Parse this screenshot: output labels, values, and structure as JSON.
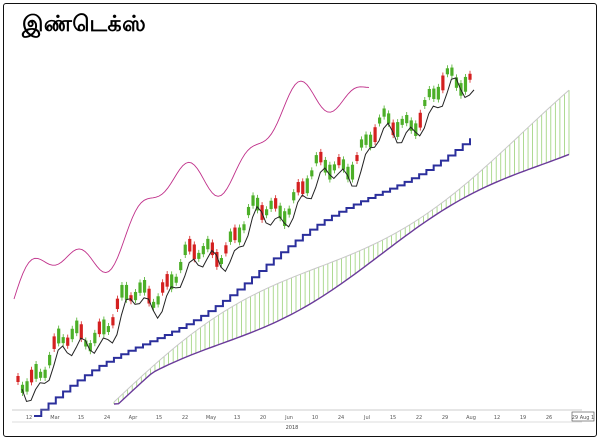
{
  "chart_data": {
    "type": "candlestick",
    "title": "இண்டெக்ஸ்",
    "colors": {
      "up": "#4caf28",
      "down": "#d42020",
      "fast_line": "#222222",
      "slow_line": "#2b2f9c",
      "lagging_line": "#c0308a",
      "cloud_top": "#c8c8c8",
      "cloud_bottom": "#6a3a9a",
      "cloud_fill": "#79c24a"
    },
    "x_tick_labels": [
      "12",
      "Mar",
      "15",
      "24",
      "Apr",
      "15",
      "22",
      "May",
      "13",
      "20",
      "Jun",
      "10",
      "24",
      "Jul",
      "15",
      "22",
      "29",
      "Aug",
      "12",
      "19",
      "26"
    ],
    "x_sub_label": "2018",
    "corner_label": "29 Aug 1",
    "candles": [
      [
        0,
        60
      ],
      [
        1,
        40
      ],
      [
        1,
        44
      ],
      [
        0,
        48
      ],
      [
        1,
        52
      ],
      [
        1,
        56
      ],
      [
        1,
        60
      ],
      [
        1,
        64
      ],
      [
        0,
        70
      ],
      [
        1,
        72
      ],
      [
        1,
        74
      ],
      [
        0,
        76
      ],
      [
        1,
        78
      ],
      [
        1,
        82
      ],
      [
        0,
        88
      ],
      [
        1,
        92
      ],
      [
        1,
        94
      ],
      [
        1,
        96
      ],
      [
        0,
        100
      ],
      [
        1,
        102
      ],
      [
        1,
        104
      ],
      [
        0,
        106
      ],
      [
        0,
        108
      ],
      [
        1,
        110
      ],
      [
        1,
        112
      ],
      [
        0,
        116
      ],
      [
        1,
        118
      ],
      [
        1,
        120
      ],
      [
        1,
        122
      ],
      [
        0,
        124
      ],
      [
        1,
        126
      ],
      [
        1,
        128
      ],
      [
        0,
        132
      ],
      [
        0,
        136
      ],
      [
        1,
        138
      ],
      [
        1,
        140
      ],
      [
        1,
        142
      ],
      [
        1,
        144
      ],
      [
        0,
        146
      ],
      [
        0,
        148
      ],
      [
        1,
        150
      ],
      [
        1,
        152
      ],
      [
        1,
        154
      ],
      [
        0,
        156
      ],
      [
        0,
        158
      ],
      [
        1,
        160
      ],
      [
        0,
        162
      ],
      [
        1,
        164
      ],
      [
        0,
        166
      ],
      [
        1,
        168
      ],
      [
        1,
        170
      ],
      [
        1,
        172
      ],
      [
        1,
        174
      ],
      [
        1,
        176
      ],
      [
        0,
        178
      ],
      [
        1,
        180
      ],
      [
        1,
        182
      ],
      [
        0,
        184
      ],
      [
        1,
        186
      ],
      [
        1,
        188
      ],
      [
        1,
        190
      ],
      [
        1,
        192
      ],
      [
        0,
        194
      ],
      [
        0,
        196
      ],
      [
        1,
        198
      ],
      [
        1,
        200
      ],
      [
        1,
        202
      ],
      [
        0,
        204
      ],
      [
        1,
        206
      ],
      [
        1,
        208
      ],
      [
        1,
        210
      ],
      [
        0,
        212
      ],
      [
        1,
        214
      ],
      [
        1,
        216
      ],
      [
        1,
        218
      ],
      [
        0,
        220
      ],
      [
        1,
        222
      ],
      [
        1,
        224
      ],
      [
        1,
        226
      ],
      [
        0,
        228
      ],
      [
        1,
        232
      ],
      [
        1,
        236
      ],
      [
        1,
        240
      ],
      [
        0,
        244
      ],
      [
        1,
        246
      ],
      [
        1,
        248
      ],
      [
        1,
        250
      ],
      [
        1,
        252
      ],
      [
        1,
        254
      ],
      [
        0,
        256
      ],
      [
        1,
        258
      ],
      [
        1,
        262
      ],
      [
        1,
        266
      ],
      [
        1,
        270
      ],
      [
        0,
        274
      ],
      [
        1,
        278
      ],
      [
        1,
        282
      ],
      [
        1,
        286
      ],
      [
        1,
        290
      ],
      [
        1,
        294
      ],
      [
        0,
        298
      ]
    ]
  }
}
